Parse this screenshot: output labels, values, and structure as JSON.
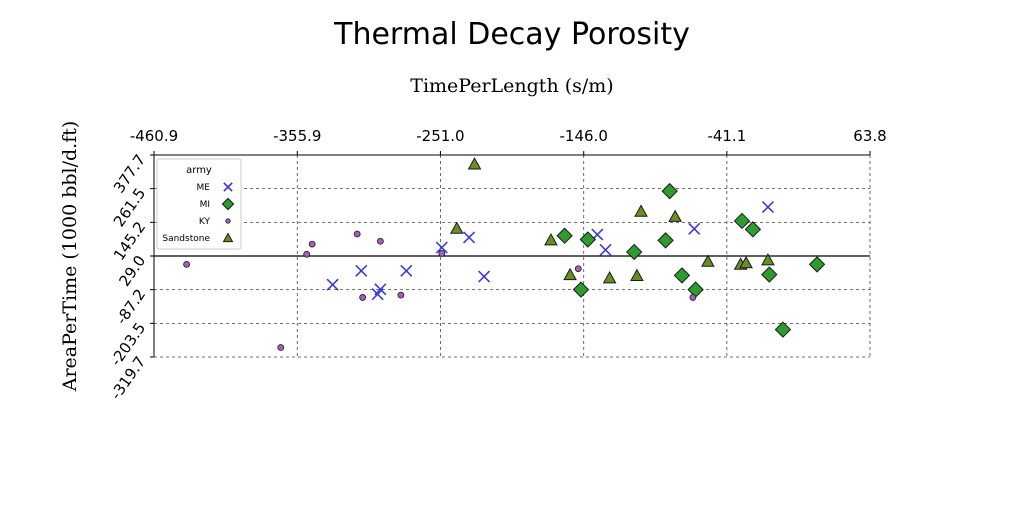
{
  "chart_data": {
    "type": "scatter",
    "title": "Thermal Decay Porosity",
    "xlabel": "TimePerLength (s/m)",
    "ylabel": "AreaPerTime (1000 bbl/d.ft)",
    "x_ticks": [
      "-460.9",
      "-355.9",
      "-251.0",
      "-146.0",
      "-41.1",
      "63.8"
    ],
    "y_ticks": [
      "377.7",
      "261.5",
      "145.2",
      "29.0",
      "-87.2",
      "-203.5",
      "-319.7"
    ],
    "xlim": [
      -460.9,
      63.8
    ],
    "ylim": [
      -319.7,
      377.7
    ],
    "x_axis_position": "top",
    "grid": true,
    "grid_style": "dashed",
    "zero_line_y": 29.0,
    "legend": {
      "title": "army",
      "position": "top-left"
    },
    "series": [
      {
        "name": "ME",
        "marker": "x",
        "color": "#3b3bdb",
        "points": [
          [
            -330,
            -70
          ],
          [
            -309,
            -22
          ],
          [
            -297,
            -103
          ],
          [
            -295,
            -86
          ],
          [
            -276,
            -22
          ],
          [
            -250,
            58
          ],
          [
            -230,
            93
          ],
          [
            -219,
            -42
          ],
          [
            -136,
            103
          ],
          [
            -130,
            50
          ],
          [
            -65,
            123
          ],
          [
            -11,
            198
          ]
        ]
      },
      {
        "name": "MI",
        "marker": "diamond",
        "color": "#2e9b2e",
        "points": [
          [
            -160,
            99
          ],
          [
            -148,
            -87
          ],
          [
            -143,
            86
          ],
          [
            -109,
            43
          ],
          [
            -86,
            83
          ],
          [
            -83,
            253
          ],
          [
            -74,
            -38
          ],
          [
            -64,
            -87
          ],
          [
            -30,
            150
          ],
          [
            -22,
            121
          ],
          [
            -10,
            -35
          ],
          [
            0,
            -225
          ],
          [
            25,
            0
          ]
        ]
      },
      {
        "name": "KY",
        "marker": "circle",
        "color": "#a25fbf",
        "points": [
          [
            -437,
            0
          ],
          [
            -368,
            -287
          ],
          [
            -349,
            35
          ],
          [
            -345,
            70
          ],
          [
            -312,
            105
          ],
          [
            -308,
            -114
          ],
          [
            -295,
            80
          ],
          [
            -280,
            -106
          ],
          [
            -250,
            38
          ],
          [
            -150,
            -15
          ],
          [
            -66,
            -114
          ]
        ]
      },
      {
        "name": "Sandstone",
        "marker": "triangle",
        "color": "#6b8e23",
        "points": [
          [
            -239,
            124
          ],
          [
            -226,
            346
          ],
          [
            -170,
            84
          ],
          [
            -156,
            -36
          ],
          [
            -127,
            -47
          ],
          [
            -107,
            -39
          ],
          [
            -104,
            183
          ],
          [
            -79,
            165
          ],
          [
            -55,
            10
          ],
          [
            -31,
            0
          ],
          [
            -27,
            5
          ],
          [
            -11,
            15
          ]
        ]
      }
    ]
  }
}
